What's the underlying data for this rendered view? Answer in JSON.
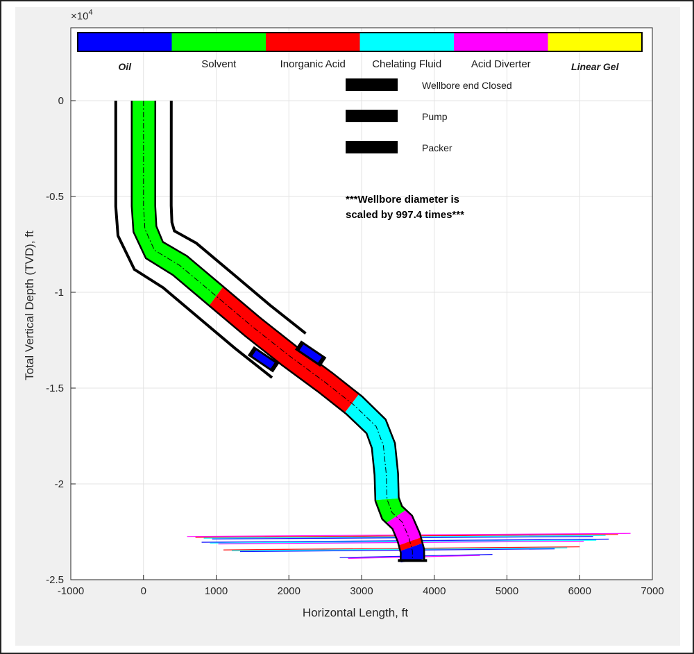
{
  "chart_data": {
    "type": "line",
    "title": "",
    "xlabel": "Horizontal Length, ft",
    "ylabel": "Total Vertical Depth (TVD), ft",
    "xlim": [
      -1000,
      7000
    ],
    "ylim": [
      -25000,
      0
    ],
    "y_exponent_label": "×10",
    "y_exponent_power": "4",
    "x_ticks": [
      "-1000",
      "0",
      "1000",
      "2000",
      "3000",
      "4000",
      "5000",
      "6000",
      "7000"
    ],
    "y_ticks": [
      "0",
      "-0.5",
      "-1",
      "-1.5",
      "-2",
      "-2.5"
    ],
    "grid": true,
    "fluid_legend": [
      {
        "label": "Oil",
        "color": "#0000ff",
        "style": "bold-italic"
      },
      {
        "label": "Solvent",
        "color": "#00ff00",
        "style": "normal"
      },
      {
        "label": "Inorganic Acid",
        "color": "#ff0000",
        "style": "normal"
      },
      {
        "label": "Chelating Fluid",
        "color": "#00ffff",
        "style": "normal"
      },
      {
        "label": "Acid Diverter",
        "color": "#ff00ff",
        "style": "normal"
      },
      {
        "label": "Linear Gel",
        "color": "#ffff00",
        "style": "bold-italic"
      }
    ],
    "symbol_legend": [
      "Wellbore end Closed",
      "Pump",
      "Packer"
    ],
    "annotation_line1": "***Wellbore diameter is",
    "annotation_line2": "scaled by 997.4 times***",
    "well_path": {
      "x": [
        0,
        0,
        20,
        150,
        500,
        1000,
        1500,
        2000,
        2500,
        2900,
        3200,
        3300,
        3340,
        3350,
        3420,
        3560,
        3650,
        3700,
        3700
      ],
      "y": [
        0,
        -5500,
        -6700,
        -7800,
        -8600,
        -10200,
        -11800,
        -13300,
        -14700,
        -15900,
        -17000,
        -18000,
        -19500,
        -20800,
        -21500,
        -22000,
        -22800,
        -23500,
        -24000
      ]
    },
    "fluid_intervals": [
      {
        "fluid": "Solvent",
        "y_top": 0,
        "y_bottom": -10200
      },
      {
        "fluid": "Inorganic Acid",
        "y_top": -10200,
        "y_bottom": -15800
      },
      {
        "fluid": "Chelating Fluid",
        "y_top": -15800,
        "y_bottom": -20800
      },
      {
        "fluid": "Solvent",
        "y_top": -20800,
        "y_bottom": -21700
      },
      {
        "fluid": "Acid Diverter",
        "y_top": -21700,
        "y_bottom": -23000
      },
      {
        "fluid": "Inorganic Acid",
        "y_top": -23000,
        "y_bottom": -23300
      },
      {
        "fluid": "Oil",
        "y_top": -23300,
        "y_bottom": -24000
      }
    ],
    "packers": [
      {
        "x": 1650,
        "y": -13500
      },
      {
        "x": 2300,
        "y": -13200
      }
    ],
    "fractures": [
      {
        "x_from": 600,
        "x_to": 6700,
        "y": -22800,
        "colors": [
          "#ff00ff",
          "#ff0000",
          "#00ffff",
          "#0000ff"
        ]
      },
      {
        "x_from": 800,
        "x_to": 6400,
        "y": -23100,
        "colors": [
          "#0000ff",
          "#00ffff",
          "#ff00ff"
        ]
      },
      {
        "x_from": 1100,
        "x_to": 6000,
        "y": -23500,
        "colors": [
          "#ff0000",
          "#00ffff",
          "#0000ff"
        ]
      },
      {
        "x_from": 2700,
        "x_to": 4800,
        "y": -23900,
        "colors": [
          "#0000ff",
          "#ff00ff"
        ]
      }
    ]
  }
}
